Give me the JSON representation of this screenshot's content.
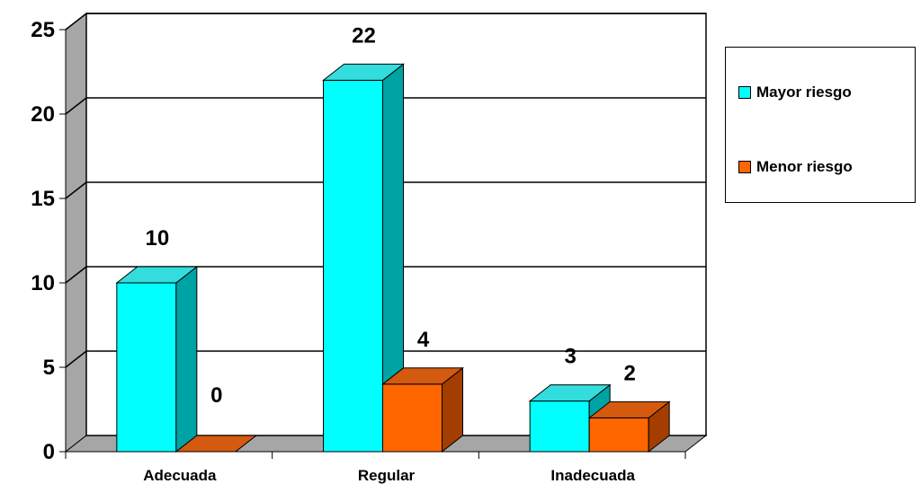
{
  "chart_data": {
    "type": "bar",
    "categories": [
      "Adecuada",
      "Regular",
      "Inadecuada"
    ],
    "series": [
      {
        "name": "Mayor riesgo",
        "values": [
          10,
          22,
          3
        ],
        "color": "#00FFFF",
        "side_color": "#00A3A3",
        "top_color": "#33DDDD"
      },
      {
        "name": "Menor riesgo",
        "values": [
          0,
          4,
          2
        ],
        "color": "#FF6600",
        "side_color": "#A33E00",
        "top_color": "#D45A0F"
      }
    ],
    "yticks": [
      "0",
      "5",
      "10",
      "15",
      "20",
      "25"
    ],
    "ylim": [
      0,
      25
    ],
    "grid": true,
    "legend_position": "right",
    "title": "",
    "xlabel": "",
    "ylabel": ""
  }
}
